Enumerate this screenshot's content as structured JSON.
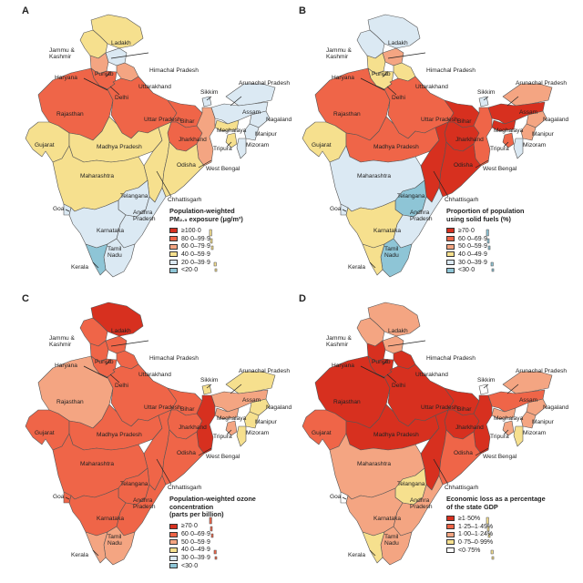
{
  "colors": {
    "red_dark": "#d7301f",
    "red": "#ef6548",
    "salmon": "#f4a582",
    "yellow": "#f6e08e",
    "light_blue": "#dbe9f3",
    "blue": "#8ec5d6",
    "border": "#555555"
  },
  "state_labels": {
    "ladakh": "Ladakh",
    "jammu_kashmir_1": "Jammu &",
    "jammu_kashmir_2": "Kashmir",
    "himachal": "Himachal Pradesh",
    "punjab": "Punjab",
    "haryana": "Haryana",
    "uttarakhand": "Uttarakhand",
    "delhi": "Delhi",
    "rajasthan": "Rajasthan",
    "uttar_pradesh": "Uttar Pradesh",
    "bihar": "Bihar",
    "sikkim": "Sikkim",
    "arunachal": "Arunachal Pradesh",
    "assam": "Assam",
    "nagaland": "Nagaland",
    "meghalaya": "Meghalaya",
    "manipur": "Manipur",
    "tripura": "Tripura",
    "mizoram": "Mizoram",
    "jharkhand": "Jharkhand",
    "west_bengal": "West Bengal",
    "gujarat": "Gujarat",
    "madhya_pradesh": "Madhya Pradesh",
    "odisha": "Odisha",
    "maharashtra": "Maharashtra",
    "chhattisgarh": "Chhattisgarh",
    "telangana": "Telangana",
    "goa": "Goa",
    "andhra_1": "Andhra",
    "andhra_2": "Pradesh",
    "karnataka": "Karnataka",
    "tamil_1": "Tamil",
    "tamil_2": "Nadu",
    "kerala": "Kerala"
  },
  "panels": [
    {
      "letter": "A",
      "legend_title_1": "Population-weighted",
      "legend_title_2": "PM₂.₅ exposure (μg/m³)",
      "legend": [
        {
          "label": "≥100·0",
          "color": "#d7301f"
        },
        {
          "label": "80·0–99·9",
          "color": "#ef6548"
        },
        {
          "label": "60·0–79·9",
          "color": "#f4a582"
        },
        {
          "label": "40·0–59·9",
          "color": "#f6e08e"
        },
        {
          "label": "20·0–39·9",
          "color": "#dbe9f3"
        },
        {
          "label": "<20·0",
          "color": "#8ec5d6"
        }
      ],
      "fills": {
        "ladakh": "#f6e08e",
        "jk": "#f6e08e",
        "hp": "#dbe9f3",
        "punjab": "#f4a582",
        "haryana": "#ef6548",
        "uttarakhand": "#f4a582",
        "delhi": "#d7301f",
        "rajasthan": "#ef6548",
        "up": "#ef6548",
        "bihar": "#ef6548",
        "sikkim": "#dbe9f3",
        "arunachal": "#dbe9f3",
        "assam": "#dbe9f3",
        "nagaland": "#dbe9f3",
        "meghalaya": "#f6e08e",
        "manipur": "#dbe9f3",
        "mizoram": "#dbe9f3",
        "tripura": "#f6e08e",
        "jharkhand": "#ef6548",
        "wb": "#f4a582",
        "gujarat": "#f6e08e",
        "mp": "#f6e08e",
        "odisha": "#f6e08e",
        "maharashtra": "#f6e08e",
        "chhattisgarh": "#f6e08e",
        "telangana": "#dbe9f3",
        "goa": "#dbe9f3",
        "andhra": "#dbe9f3",
        "karnataka": "#dbe9f3",
        "tamil": "#dbe9f3",
        "kerala": "#8ec5d6",
        "islands": "#f6e08e"
      }
    },
    {
      "letter": "B",
      "legend_title_1": "Proportion of population",
      "legend_title_2": "using solid fuels (%)",
      "legend": [
        {
          "label": "≥70·0",
          "color": "#d7301f"
        },
        {
          "label": "60·0–69·9",
          "color": "#ef6548"
        },
        {
          "label": "50·0–59·9",
          "color": "#f4a582"
        },
        {
          "label": "40·0–49·9",
          "color": "#f6e08e"
        },
        {
          "label": "30·0–39·9",
          "color": "#dbe9f3"
        },
        {
          "label": "<30·0",
          "color": "#8ec5d6"
        }
      ],
      "fills": {
        "ladakh": "#dbe9f3",
        "jk": "#dbe9f3",
        "hp": "#f4a582",
        "punjab": "#f6e08e",
        "haryana": "#f6e08e",
        "uttarakhand": "#f6e08e",
        "delhi": "#8ec5d6",
        "rajasthan": "#ef6548",
        "up": "#ef6548",
        "bihar": "#d7301f",
        "sikkim": "#dbe9f3",
        "arunachal": "#f4a582",
        "assam": "#d7301f",
        "nagaland": "#f4a582",
        "meghalaya": "#d7301f",
        "manipur": "#f4a582",
        "mizoram": "#dbe9f3",
        "tripura": "#ef6548",
        "jharkhand": "#d7301f",
        "wb": "#ef6548",
        "gujarat": "#f6e08e",
        "mp": "#ef6548",
        "odisha": "#d7301f",
        "maharashtra": "#dbe9f3",
        "chhattisgarh": "#d7301f",
        "telangana": "#8ec5d6",
        "goa": "#dbe9f3",
        "andhra": "#dbe9f3",
        "karnataka": "#f6e08e",
        "tamil": "#8ec5d6",
        "kerala": "#f6e08e",
        "islands": "#8ec5d6"
      }
    },
    {
      "letter": "C",
      "legend_title_1": "Population-weighted ozone concentration",
      "legend_title_2": "(parts per billion)",
      "legend": [
        {
          "label": "≥70·0",
          "color": "#d7301f"
        },
        {
          "label": "60·0–69·9",
          "color": "#ef6548"
        },
        {
          "label": "50·0–59·9",
          "color": "#f4a582"
        },
        {
          "label": "40·0–49·9",
          "color": "#f6e08e"
        },
        {
          "label": "30·0–39·9",
          "color": "#dbe9f3"
        },
        {
          "label": "<30·0",
          "color": "#8ec5d6"
        }
      ],
      "fills": {
        "ladakh": "#d7301f",
        "jk": "#ef6548",
        "hp": "#ef6548",
        "punjab": "#ef6548",
        "haryana": "#ef6548",
        "uttarakhand": "#ef6548",
        "delhi": "#ef6548",
        "rajasthan": "#f4a582",
        "up": "#ef6548",
        "bihar": "#ef6548",
        "sikkim": "#f6e08e",
        "arunachal": "#f6e08e",
        "assam": "#f4a582",
        "nagaland": "#f6e08e",
        "meghalaya": "#f4a582",
        "manipur": "#f6e08e",
        "mizoram": "#f6e08e",
        "tripura": "#f4a582",
        "jharkhand": "#ef6548",
        "wb": "#d7301f",
        "gujarat": "#ef6548",
        "mp": "#ef6548",
        "odisha": "#ef6548",
        "maharashtra": "#ef6548",
        "chhattisgarh": "#ef6548",
        "telangana": "#ef6548",
        "goa": "#ef6548",
        "andhra": "#ef6548",
        "karnataka": "#ef6548",
        "tamil": "#f4a582",
        "kerala": "#f4a582",
        "islands": "#ef6548"
      }
    },
    {
      "letter": "D",
      "legend_title_1": "Economic loss as a percentage",
      "legend_title_2": "of the state GDP",
      "legend": [
        {
          "label": "≥1·50%",
          "color": "#d7301f"
        },
        {
          "label": "1·25–1·49%",
          "color": "#ef6548"
        },
        {
          "label": "1·00–1·24%",
          "color": "#f4a582"
        },
        {
          "label": "0·75–0·99%",
          "color": "#f6e08e"
        },
        {
          "label": "<0·75%",
          "color": "#ffffff"
        }
      ],
      "fills": {
        "ladakh": "#f4a582",
        "jk": "#f4a582",
        "hp": "#f4a582",
        "punjab": "#d7301f",
        "haryana": "#d7301f",
        "uttarakhand": "#d7301f",
        "delhi": "#f6e08e",
        "rajasthan": "#d7301f",
        "up": "#d7301f",
        "bihar": "#d7301f",
        "sikkim": "#ffffff",
        "arunachal": "#f4a582",
        "assam": "#ef6548",
        "nagaland": "#f4a582",
        "meghalaya": "#f4a582",
        "manipur": "#f4a582",
        "mizoram": "#f6e08e",
        "tripura": "#f4a582",
        "jharkhand": "#d7301f",
        "wb": "#d7301f",
        "gujarat": "#ef6548",
        "mp": "#d7301f",
        "odisha": "#ef6548",
        "maharashtra": "#f4a582",
        "chhattisgarh": "#d7301f",
        "telangana": "#f6e08e",
        "goa": "#ffffff",
        "andhra": "#f4a582",
        "karnataka": "#f4a582",
        "tamil": "#f4a582",
        "kerala": "#f6e08e",
        "islands": "#f6e08e"
      }
    }
  ]
}
